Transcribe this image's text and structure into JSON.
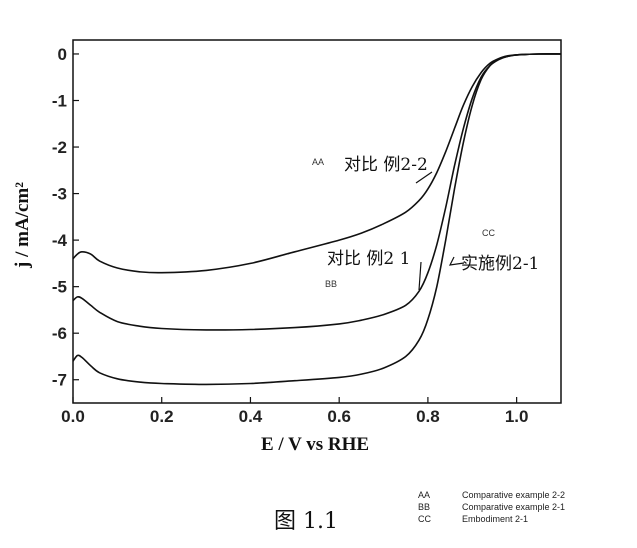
{
  "chart_data": {
    "type": "line",
    "xlabel": "E / V vs RHE",
    "ylabel": "j / mA/cm²",
    "xlim": [
      0.0,
      1.1
    ],
    "ylim": [
      -7.5,
      0.3
    ],
    "x_ticks": [
      "0.0",
      "0.2",
      "0.4",
      "0.6",
      "0.8",
      "1.0"
    ],
    "y_ticks": [
      "0",
      "-1",
      "-2",
      "-3",
      "-4",
      "-5",
      "-6",
      "-7"
    ],
    "grid": false,
    "series": [
      {
        "name": "对比 例2-2",
        "code": "AA",
        "x": [
          0.0,
          0.01,
          0.02,
          0.04,
          0.06,
          0.1,
          0.15,
          0.2,
          0.3,
          0.4,
          0.5,
          0.6,
          0.65,
          0.7,
          0.75,
          0.78,
          0.8,
          0.82,
          0.84,
          0.86,
          0.88,
          0.9,
          0.92,
          0.94,
          0.96,
          0.98,
          1.0,
          1.02,
          1.05,
          1.1
        ],
        "y": [
          -4.4,
          -4.3,
          -4.25,
          -4.3,
          -4.45,
          -4.6,
          -4.68,
          -4.7,
          -4.65,
          -4.5,
          -4.25,
          -4.0,
          -3.85,
          -3.65,
          -3.4,
          -3.15,
          -2.9,
          -2.55,
          -2.1,
          -1.6,
          -1.1,
          -0.7,
          -0.4,
          -0.2,
          -0.1,
          -0.05,
          -0.02,
          -0.01,
          0.0,
          0.0
        ]
      },
      {
        "name": "对比 例2 1",
        "code": "BB",
        "x": [
          0.0,
          0.01,
          0.02,
          0.04,
          0.06,
          0.1,
          0.15,
          0.2,
          0.3,
          0.4,
          0.5,
          0.6,
          0.65,
          0.7,
          0.75,
          0.78,
          0.8,
          0.82,
          0.84,
          0.86,
          0.88,
          0.9,
          0.92,
          0.94,
          0.96,
          0.98,
          1.0,
          1.02,
          1.05,
          1.1
        ],
        "y": [
          -5.3,
          -5.22,
          -5.25,
          -5.4,
          -5.55,
          -5.75,
          -5.85,
          -5.9,
          -5.93,
          -5.92,
          -5.88,
          -5.8,
          -5.72,
          -5.6,
          -5.4,
          -5.1,
          -4.7,
          -4.1,
          -3.3,
          -2.4,
          -1.6,
          -0.95,
          -0.5,
          -0.25,
          -0.12,
          -0.05,
          -0.02,
          -0.01,
          0.0,
          0.0
        ]
      },
      {
        "name": "实施例2-1",
        "code": "CC",
        "x": [
          0.0,
          0.01,
          0.02,
          0.04,
          0.06,
          0.1,
          0.15,
          0.2,
          0.3,
          0.4,
          0.5,
          0.6,
          0.65,
          0.7,
          0.75,
          0.78,
          0.8,
          0.82,
          0.84,
          0.86,
          0.88,
          0.9,
          0.92,
          0.94,
          0.96,
          0.98,
          1.0,
          1.02,
          1.05,
          1.1
        ],
        "y": [
          -6.6,
          -6.48,
          -6.52,
          -6.7,
          -6.85,
          -6.98,
          -7.05,
          -7.08,
          -7.1,
          -7.08,
          -7.02,
          -6.95,
          -6.88,
          -6.75,
          -6.5,
          -6.15,
          -5.7,
          -5.0,
          -4.0,
          -2.9,
          -1.9,
          -1.1,
          -0.55,
          -0.25,
          -0.1,
          -0.04,
          -0.02,
          -0.01,
          0.0,
          0.0
        ]
      }
    ]
  },
  "annotations": {
    "aa_code": "AA",
    "aa_label": "对比 例2-2",
    "bb_code": "BB",
    "bb_label": "对比 例2 1",
    "cc_code": "CC",
    "cc_label": "实施例2-1"
  },
  "caption": "图 1.1",
  "legend": [
    {
      "code": "AA",
      "text": "Comparative example 2-2"
    },
    {
      "code": "BB",
      "text": "Comparative example 2-1"
    },
    {
      "code": "CC",
      "text": "Embodiment 2-1"
    }
  ]
}
